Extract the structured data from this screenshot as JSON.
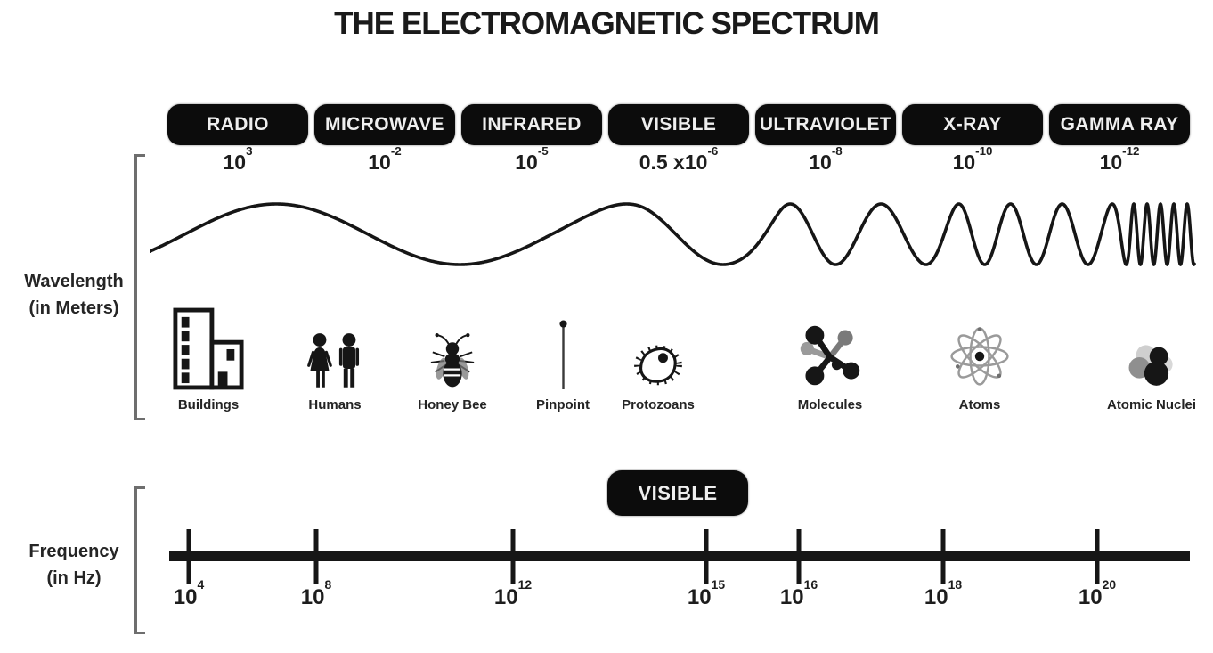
{
  "title": "THE ELECTROMAGNETIC SPECTRUM",
  "colors": {
    "background": "#ffffff",
    "ink": "#161616",
    "band_pill_fill": "#0c0c0c",
    "band_pill_text": "#efefef",
    "bracket": "#6e6e6e",
    "molecule_gray": "#8f8f8f",
    "nuclei_light_gray": "#cfcfcf"
  },
  "bands": [
    {
      "label": "RADIO",
      "wl_base": "10",
      "wl_exp": "3"
    },
    {
      "label": "MICROWAVE",
      "wl_base": "10",
      "wl_exp": "-2"
    },
    {
      "label": "INFRARED",
      "wl_base": "10",
      "wl_exp": "-5"
    },
    {
      "label": "VISIBLE",
      "wl_base": "0.5 x10",
      "wl_exp": "-6"
    },
    {
      "label": "ULTRAVIOLET",
      "wl_base": "10",
      "wl_exp": "-8"
    },
    {
      "label": "X-RAY",
      "wl_base": "10",
      "wl_exp": "-10"
    },
    {
      "label": "GAMMA RAY",
      "wl_base": "10",
      "wl_exp": "-12"
    }
  ],
  "wavelength_axis": {
    "label_line1": "Wavelength",
    "label_line2": "(in Meters)"
  },
  "scale_objects": [
    {
      "label": "Buildings",
      "icon": "buildings-icon"
    },
    {
      "label": "Humans",
      "icon": "humans-icon"
    },
    {
      "label": "Honey Bee",
      "icon": "honey-bee-icon"
    },
    {
      "label": "Pinpoint",
      "icon": "pinpoint-icon"
    },
    {
      "label": "Protozoans",
      "icon": "protozoan-icon"
    },
    {
      "label": "Molecules",
      "icon": "molecules-icon"
    },
    {
      "label": "Atoms",
      "icon": "atom-icon"
    },
    {
      "label": "Atomic Nuclei",
      "icon": "atomic-nuclei-icon"
    }
  ],
  "frequency_axis": {
    "label_line1": "Frequency",
    "label_line2": "(in Hz)",
    "visible_band_label": "VISIBLE",
    "ticks": [
      {
        "base": "10",
        "exp": "4"
      },
      {
        "base": "10",
        "exp": "8"
      },
      {
        "base": "10",
        "exp": "12"
      },
      {
        "base": "10",
        "exp": "15"
      },
      {
        "base": "10",
        "exp": "16"
      },
      {
        "base": "10",
        "exp": "18"
      },
      {
        "base": "10",
        "exp": "20"
      }
    ]
  }
}
